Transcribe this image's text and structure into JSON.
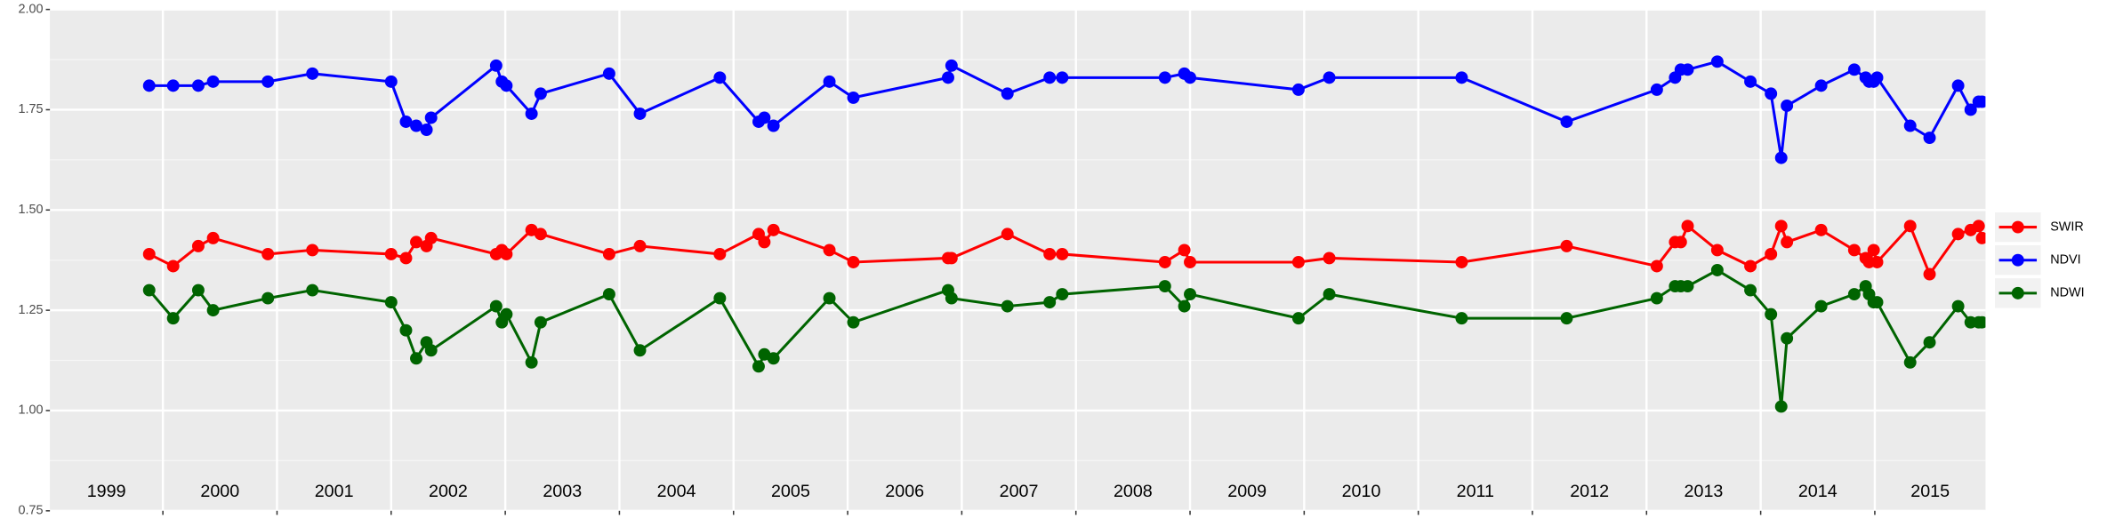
{
  "chart_data": {
    "type": "line",
    "x": [
      1999.88,
      2000.09,
      2000.31,
      2000.44,
      2000.92,
      2001.31,
      2002.0,
      2002.13,
      2002.22,
      2002.31,
      2002.35,
      2002.92,
      2002.97,
      2003.01,
      2003.23,
      2003.31,
      2003.91,
      2004.18,
      2004.88,
      2005.22,
      2005.27,
      2005.35,
      2005.84,
      2006.05,
      2006.88,
      2006.91,
      2007.4,
      2007.77,
      2007.88,
      2008.78,
      2008.95,
      2009.0,
      2009.95,
      2010.22,
      2011.38,
      2012.3,
      2013.09,
      2013.25,
      2013.3,
      2013.36,
      2013.62,
      2013.91,
      2014.09,
      2014.18,
      2014.23,
      2014.53,
      2014.82,
      2014.92,
      2014.95,
      2014.99,
      2015.02,
      2015.31,
      2015.48,
      2015.73,
      2015.84,
      2015.91,
      2015.94
    ],
    "series": [
      {
        "name": "SWIR",
        "color": "#ff0000",
        "values": [
          1.39,
          1.36,
          1.41,
          1.43,
          1.39,
          1.4,
          1.39,
          1.38,
          1.42,
          1.41,
          1.43,
          1.39,
          1.4,
          1.39,
          1.45,
          1.44,
          1.39,
          1.41,
          1.39,
          1.44,
          1.42,
          1.45,
          1.4,
          1.37,
          1.38,
          1.38,
          1.44,
          1.39,
          1.39,
          1.37,
          1.4,
          1.37,
          1.37,
          1.38,
          1.37,
          1.41,
          1.36,
          1.42,
          1.42,
          1.46,
          1.4,
          1.36,
          1.39,
          1.46,
          1.42,
          1.45,
          1.4,
          1.38,
          1.37,
          1.4,
          1.37,
          1.46,
          1.34,
          1.44,
          1.45,
          1.46,
          1.43
        ]
      },
      {
        "name": "NDVI",
        "color": "#0000ff",
        "values": [
          1.81,
          1.81,
          1.81,
          1.82,
          1.82,
          1.84,
          1.82,
          1.72,
          1.71,
          1.7,
          1.73,
          1.86,
          1.82,
          1.81,
          1.74,
          1.79,
          1.84,
          1.74,
          1.83,
          1.72,
          1.73,
          1.71,
          1.82,
          1.78,
          1.83,
          1.86,
          1.79,
          1.83,
          1.83,
          1.83,
          1.84,
          1.83,
          1.8,
          1.83,
          1.83,
          1.72,
          1.8,
          1.83,
          1.85,
          1.85,
          1.87,
          1.82,
          1.79,
          1.63,
          1.76,
          1.81,
          1.85,
          1.83,
          1.82,
          1.82,
          1.83,
          1.71,
          1.68,
          1.81,
          1.75,
          1.77,
          1.77
        ]
      },
      {
        "name": "NDWI",
        "color": "#006400",
        "values": [
          1.3,
          1.23,
          1.3,
          1.25,
          1.28,
          1.3,
          1.27,
          1.2,
          1.13,
          1.17,
          1.15,
          1.26,
          1.22,
          1.24,
          1.12,
          1.22,
          1.29,
          1.15,
          1.28,
          1.11,
          1.14,
          1.13,
          1.28,
          1.22,
          1.3,
          1.28,
          1.26,
          1.27,
          1.29,
          1.31,
          1.26,
          1.29,
          1.23,
          1.29,
          1.23,
          1.23,
          1.28,
          1.31,
          1.31,
          1.31,
          1.35,
          1.3,
          1.24,
          1.01,
          1.18,
          1.26,
          1.29,
          1.31,
          1.29,
          1.27,
          1.27,
          1.12,
          1.17,
          1.26,
          1.22,
          1.22,
          1.22
        ]
      }
    ],
    "xlim": [
      1999.01,
      2015.97
    ],
    "xticks": [
      2000,
      2001,
      2002,
      2003,
      2004,
      2005,
      2006,
      2007,
      2008,
      2009,
      2010,
      2011,
      2012,
      2013,
      2014,
      2015
    ],
    "year_labels": [
      "1999",
      "2000",
      "2001",
      "2002",
      "2003",
      "2004",
      "2005",
      "2006",
      "2007",
      "2008",
      "2009",
      "2010",
      "2011",
      "2012",
      "2013",
      "2014",
      "2015"
    ],
    "ylim": [
      0.75,
      2.0
    ],
    "yticks": [
      {
        "value": 0.75,
        "label": "0.75"
      },
      {
        "value": 1.0,
        "label": "1.00"
      },
      {
        "value": 1.25,
        "label": "1.25"
      },
      {
        "value": 1.5,
        "label": "1.50"
      },
      {
        "value": 1.75,
        "label": "1.75"
      },
      {
        "value": 2.0,
        "label": "2.00"
      }
    ],
    "grid": true,
    "legend": "right"
  }
}
